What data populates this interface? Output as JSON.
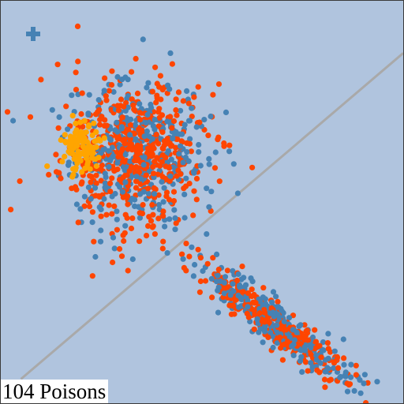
{
  "status": {
    "count": "104",
    "label": "Poisons"
  },
  "tool": {
    "icon": "plus-icon"
  },
  "colors": {
    "background": "#b0c4de",
    "class_a": "#ff4500",
    "class_b": "#4682b4",
    "poison": "#ffa500",
    "boundary": "#a9a9a9"
  },
  "chart_data": {
    "type": "scatter",
    "title": "",
    "xlabel": "",
    "ylabel": "",
    "grid": false,
    "legend": "none",
    "clusters": [
      {
        "cx": 0.33,
        "cy": 0.62,
        "sx": 0.09,
        "sy": 0.09,
        "rotation": 0,
        "count_a": 520,
        "count_b": 380
      },
      {
        "cx": 0.69,
        "cy": 0.19,
        "sx": 0.11,
        "sy": 0.022,
        "rotation": -38,
        "count_a": 300,
        "count_b": 280
      }
    ],
    "poison_points": {
      "cx": 0.2,
      "cy": 0.64,
      "sx": 0.025,
      "sy": 0.03,
      "count": 104
    },
    "decision_boundary": {
      "start": [
        0.05,
        0.06
      ],
      "end": [
        1.0,
        0.87
      ]
    }
  }
}
